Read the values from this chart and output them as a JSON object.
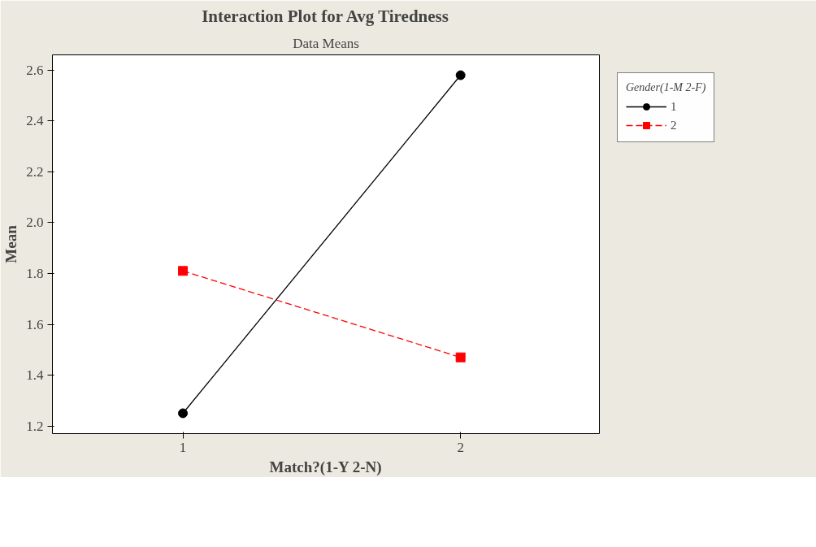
{
  "chart_data": {
    "type": "line",
    "title": "Interaction Plot for Avg Tiredness",
    "subtitle": "Data Means",
    "xlabel": "Match?(1-Y 2-N)",
    "ylabel": "Mean",
    "legend_title": "Gender(1-M 2-F)",
    "x": [
      1,
      2
    ],
    "xlim": [
      0.53,
      2.5
    ],
    "xticks": [
      1,
      2
    ],
    "ylim": [
      1.17,
      2.66
    ],
    "yticks": [
      1.2,
      1.4,
      1.6,
      1.8,
      {
        "value": 2,
        "label": "2.0"
      },
      2.2,
      2.4,
      2.6
    ],
    "series": [
      {
        "name": "1",
        "color": "#000000",
        "values": [
          1.25,
          2.58
        ],
        "marker": "circle",
        "line_style": "solid"
      },
      {
        "name": "2",
        "color": "#ff0000",
        "values": [
          1.81,
          1.47
        ],
        "marker": "square",
        "line_style": "dashed"
      }
    ],
    "grid": false,
    "legend": "right"
  }
}
